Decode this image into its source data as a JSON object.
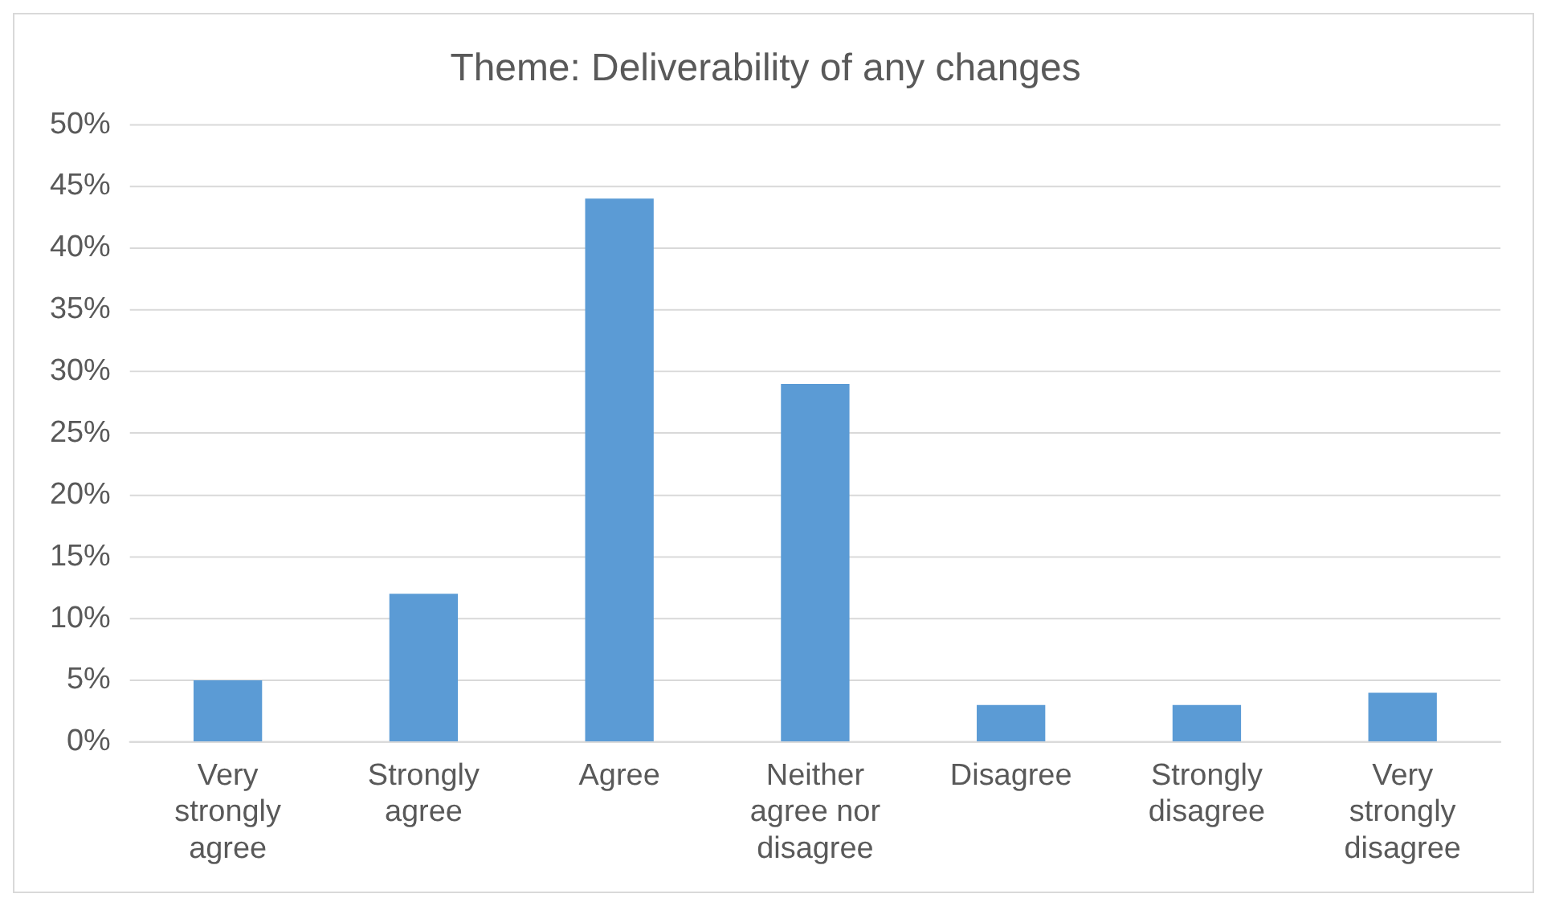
{
  "chart_data": {
    "type": "bar",
    "title": "Theme: Deliverability of any changes",
    "categories": [
      "Very strongly agree",
      "Strongly agree",
      "Agree",
      "Neither agree nor disagree",
      "Disagree",
      "Strongly disagree",
      "Very strongly disagree"
    ],
    "values": [
      5,
      12,
      44,
      29,
      3,
      3,
      4
    ],
    "color": "#5b9bd5",
    "ylim": [
      0,
      50
    ],
    "yticks": [
      {
        "value": 0,
        "label": "0%"
      },
      {
        "value": 5,
        "label": "5%"
      },
      {
        "value": 10,
        "label": "10%"
      },
      {
        "value": 15,
        "label": "15%"
      },
      {
        "value": 20,
        "label": "20%"
      },
      {
        "value": 25,
        "label": "25%"
      },
      {
        "value": 30,
        "label": "30%"
      },
      {
        "value": 35,
        "label": "35%"
      },
      {
        "value": 40,
        "label": "40%"
      },
      {
        "value": 45,
        "label": "45%"
      },
      {
        "value": 50,
        "label": "50%"
      }
    ],
    "grid": "y",
    "legend": false
  }
}
